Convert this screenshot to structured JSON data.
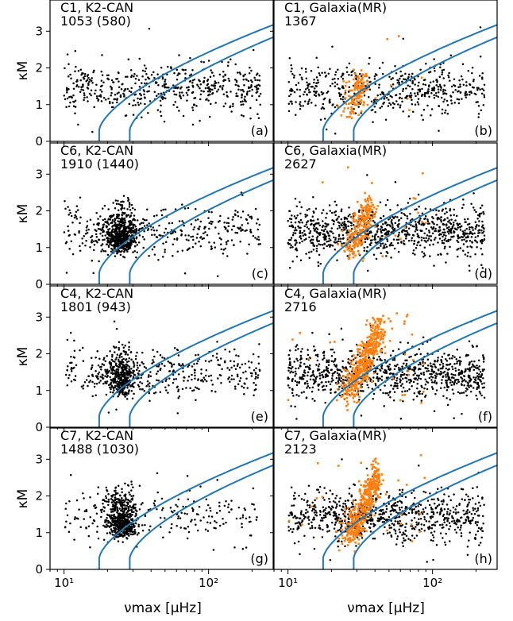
{
  "figure": {
    "xlabel": "νmax [μHz]",
    "ylabel": "κM"
  },
  "chart_data": [
    {
      "type": "scatter",
      "row": 0,
      "col": 0,
      "title": "C1, K2-CAN",
      "count": "1053 (580)",
      "tag": "(a)",
      "xscale": "log",
      "xlim": [
        8,
        280
      ],
      "ylim": [
        0,
        3.85
      ],
      "xticks": [
        "10¹",
        "10²"
      ],
      "yticks": [
        0,
        1,
        2,
        3
      ],
      "seed": 11,
      "series": [
        {
          "color": "#000000",
          "n": 520,
          "dist": "data",
          "hook": 0.0
        }
      ],
      "curve_color": "#1f77b4",
      "curves": [
        {
          "x0": 17.5
        },
        {
          "x0": 28.5
        }
      ]
    },
    {
      "type": "scatter",
      "row": 0,
      "col": 1,
      "title": "C1, Galaxia(MR)",
      "count": "1367",
      "tag": "(b)",
      "xscale": "log",
      "xlim": [
        8,
        280
      ],
      "ylim": [
        0,
        3.85
      ],
      "xticks": [
        "10¹",
        "10²"
      ],
      "yticks": [
        0,
        1,
        2,
        3
      ],
      "seed": 21,
      "series": [
        {
          "color": "#000000",
          "n": 520,
          "dist": "data",
          "hook": 0.0
        },
        {
          "color": "#ff7f0e",
          "n": 140,
          "dist": "clump",
          "spread": 0.6
        }
      ],
      "curve_color": "#1f77b4",
      "curves": [
        {
          "x0": 17.5
        },
        {
          "x0": 28.5
        }
      ]
    },
    {
      "type": "scatter",
      "row": 1,
      "col": 0,
      "title": "C6, K2-CAN",
      "count": "1910 (1440)",
      "tag": "(c)",
      "xscale": "log",
      "xlim": [
        8,
        280
      ],
      "ylim": [
        0,
        3.85
      ],
      "xticks": [
        "10¹",
        "10²"
      ],
      "yticks": [
        0,
        1,
        2,
        3
      ],
      "seed": 31,
      "series": [
        {
          "color": "#000000",
          "n": 950,
          "dist": "data",
          "hook": 0.6
        }
      ],
      "curve_color": "#1f77b4",
      "curves": [
        {
          "x0": 17.5
        },
        {
          "x0": 28.5
        }
      ]
    },
    {
      "type": "scatter",
      "row": 1,
      "col": 1,
      "title": "C6, Galaxia(MR)",
      "count": "2627",
      "tag": "(d)",
      "xscale": "log",
      "xlim": [
        8,
        280
      ],
      "ylim": [
        0,
        3.85
      ],
      "xticks": [
        "10¹",
        "10²"
      ],
      "yticks": [
        0,
        1,
        2,
        3
      ],
      "seed": 41,
      "series": [
        {
          "color": "#000000",
          "n": 900,
          "dist": "data",
          "hook": 0.0
        },
        {
          "color": "#ff7f0e",
          "n": 260,
          "dist": "clump",
          "spread": 1.0
        }
      ],
      "curve_color": "#1f77b4",
      "curves": [
        {
          "x0": 17.5
        },
        {
          "x0": 28.5
        }
      ]
    },
    {
      "type": "scatter",
      "row": 2,
      "col": 0,
      "title": "C4, K2-CAN",
      "count": "1801 (943)",
      "tag": "(e)",
      "xscale": "log",
      "xlim": [
        8,
        280
      ],
      "ylim": [
        0,
        3.85
      ],
      "xticks": [
        "10¹",
        "10²"
      ],
      "yticks": [
        0,
        1,
        2,
        3
      ],
      "seed": 51,
      "series": [
        {
          "color": "#000000",
          "n": 750,
          "dist": "data",
          "hook": 0.5
        }
      ],
      "curve_color": "#1f77b4",
      "curves": [
        {
          "x0": 17.5
        },
        {
          "x0": 28.5
        }
      ]
    },
    {
      "type": "scatter",
      "row": 2,
      "col": 1,
      "title": "C4, Galaxia(MR)",
      "count": "2716",
      "tag": "(f)",
      "xscale": "log",
      "xlim": [
        8,
        280
      ],
      "ylim": [
        0,
        3.85
      ],
      "xticks": [
        "10¹",
        "10²"
      ],
      "yticks": [
        0,
        1,
        2,
        3
      ],
      "seed": 61,
      "series": [
        {
          "color": "#000000",
          "n": 900,
          "dist": "data",
          "hook": 0.0
        },
        {
          "color": "#ff7f0e",
          "n": 500,
          "dist": "clump",
          "spread": 1.4
        }
      ],
      "curve_color": "#1f77b4",
      "curves": [
        {
          "x0": 17.5
        },
        {
          "x0": 28.5
        }
      ]
    },
    {
      "type": "scatter",
      "row": 3,
      "col": 0,
      "title": "C7, K2-CAN",
      "count": "1488 (1030)",
      "tag": "(g)",
      "xscale": "log",
      "xlim": [
        8,
        280
      ],
      "ylim": [
        0,
        3.85
      ],
      "xticks": [
        "10¹",
        "10²"
      ],
      "yticks": [
        0,
        1,
        2,
        3
      ],
      "seed": 71,
      "series": [
        {
          "color": "#000000",
          "n": 750,
          "dist": "data",
          "hook": 0.7
        }
      ],
      "curve_color": "#1f77b4",
      "curves": [
        {
          "x0": 17.5
        },
        {
          "x0": 28.5
        }
      ]
    },
    {
      "type": "scatter",
      "row": 3,
      "col": 1,
      "title": "C7, Galaxia(MR)",
      "count": "2123",
      "tag": "(h)",
      "xscale": "log",
      "xlim": [
        8,
        280
      ],
      "ylim": [
        0,
        3.85
      ],
      "xticks": [
        "10¹",
        "10²"
      ],
      "yticks": [
        0,
        1,
        2,
        3
      ],
      "seed": 81,
      "series": [
        {
          "color": "#000000",
          "n": 800,
          "dist": "data",
          "hook": 0.0
        },
        {
          "color": "#ff7f0e",
          "n": 450,
          "dist": "clump",
          "spread": 1.3
        }
      ],
      "curve_color": "#1f77b4",
      "curves": [
        {
          "x0": 17.5
        },
        {
          "x0": 28.5
        }
      ]
    }
  ]
}
